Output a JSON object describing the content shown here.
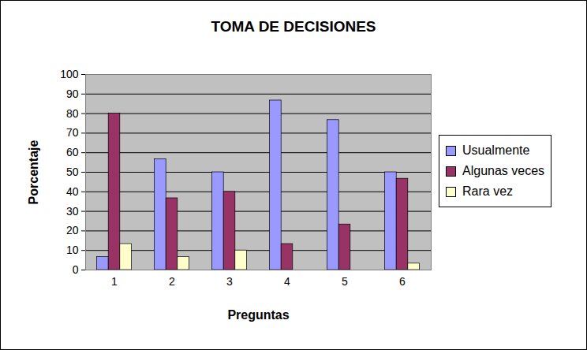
{
  "chart_data": {
    "type": "bar",
    "title": "TOMA DE DECISIONES",
    "x_label": "Preguntas",
    "y_label": "Porcentaje",
    "categories": [
      "1",
      "2",
      "3",
      "4",
      "5",
      "6"
    ],
    "series": [
      {
        "name": "Usualmente",
        "color": "#9999ff",
        "values": [
          6.7,
          56.7,
          50,
          86.7,
          76.7,
          50
        ]
      },
      {
        "name": "Algunas veces",
        "color": "#993366",
        "values": [
          80,
          36.7,
          40,
          13.3,
          23.3,
          46.7
        ]
      },
      {
        "name": "Rara vez",
        "color": "#ffffcc",
        "values": [
          13.3,
          6.7,
          10,
          0,
          0,
          3.3
        ]
      }
    ],
    "ylim": [
      0,
      100
    ],
    "yticks": [
      0,
      10,
      20,
      30,
      40,
      50,
      60,
      70,
      80,
      90,
      100
    ],
    "grid": true,
    "legend": "right"
  }
}
